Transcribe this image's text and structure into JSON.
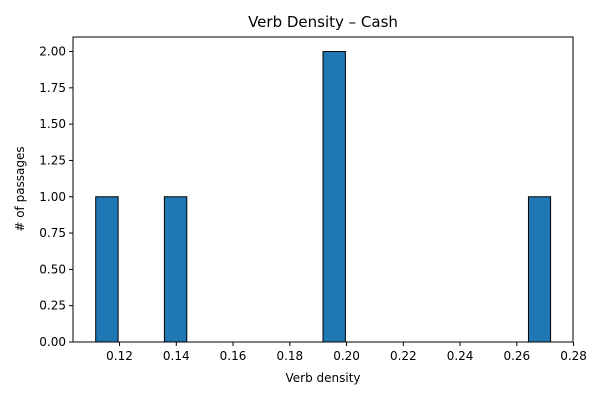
{
  "chart_data": {
    "type": "bar",
    "title": "Verb Density – Cash",
    "xlabel": "Verb density",
    "ylabel": "# of passages",
    "xlim": [
      0.1036,
      0.2798
    ],
    "ylim": [
      0,
      2.1
    ],
    "xticks": [
      0.12,
      0.14,
      0.16,
      0.18,
      0.2,
      0.22,
      0.24,
      0.26,
      0.28
    ],
    "xtick_labels": [
      "0.12",
      "0.14",
      "0.16",
      "0.18",
      "0.20",
      "0.22",
      "0.24",
      "0.26",
      "0.28"
    ],
    "yticks": [
      0,
      0.25,
      0.5,
      0.75,
      1.0,
      1.25,
      1.5,
      1.75,
      2.0
    ],
    "ytick_labels": [
      "0.00",
      "0.25",
      "0.50",
      "0.75",
      "1.00",
      "1.25",
      "1.50",
      "1.75",
      "2.00"
    ],
    "bars": [
      {
        "x0": 0.1116,
        "x1": 0.1195,
        "value": 1
      },
      {
        "x0": 0.1358,
        "x1": 0.1437,
        "value": 1
      },
      {
        "x0": 0.1917,
        "x1": 0.1996,
        "value": 2
      },
      {
        "x0": 0.2641,
        "x1": 0.2719,
        "value": 1
      }
    ],
    "bar_color": "#1f77b4",
    "edge_color": "#000000",
    "grid": false
  }
}
